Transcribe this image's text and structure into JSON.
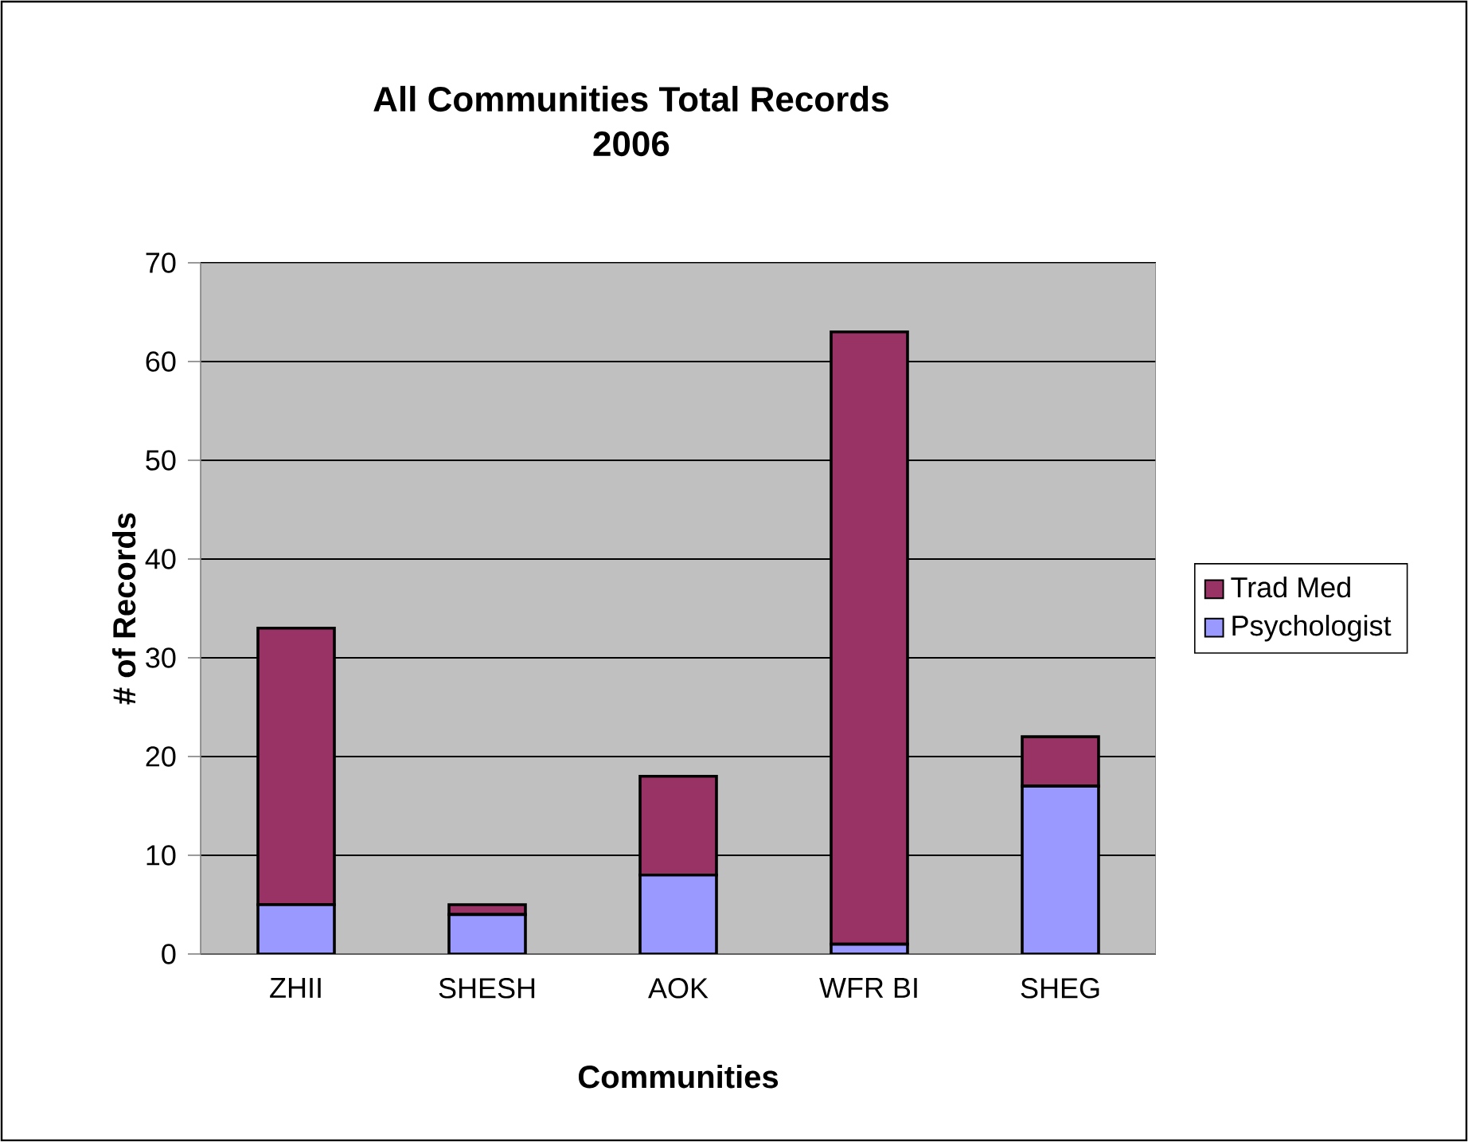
{
  "chart_data": {
    "type": "bar",
    "title": "All Communities Total Records",
    "subtitle": "2006",
    "xlabel": "Communities",
    "ylabel": "# of Records",
    "categories": [
      "ZHII",
      "SHESH",
      "AOK",
      "WFR BI",
      "SHEG"
    ],
    "stacked": true,
    "series": [
      {
        "name": "Psychologist",
        "color": "#9999ff",
        "values": [
          5,
          4,
          8,
          1,
          17
        ]
      },
      {
        "name": "Trad Med",
        "color": "#993366",
        "values": [
          28,
          1,
          10,
          62,
          5
        ]
      }
    ],
    "ylim": [
      0,
      70
    ],
    "yticks": [
      0,
      10,
      20,
      30,
      40,
      50,
      60,
      70
    ],
    "grid": "y",
    "legend": "right"
  }
}
